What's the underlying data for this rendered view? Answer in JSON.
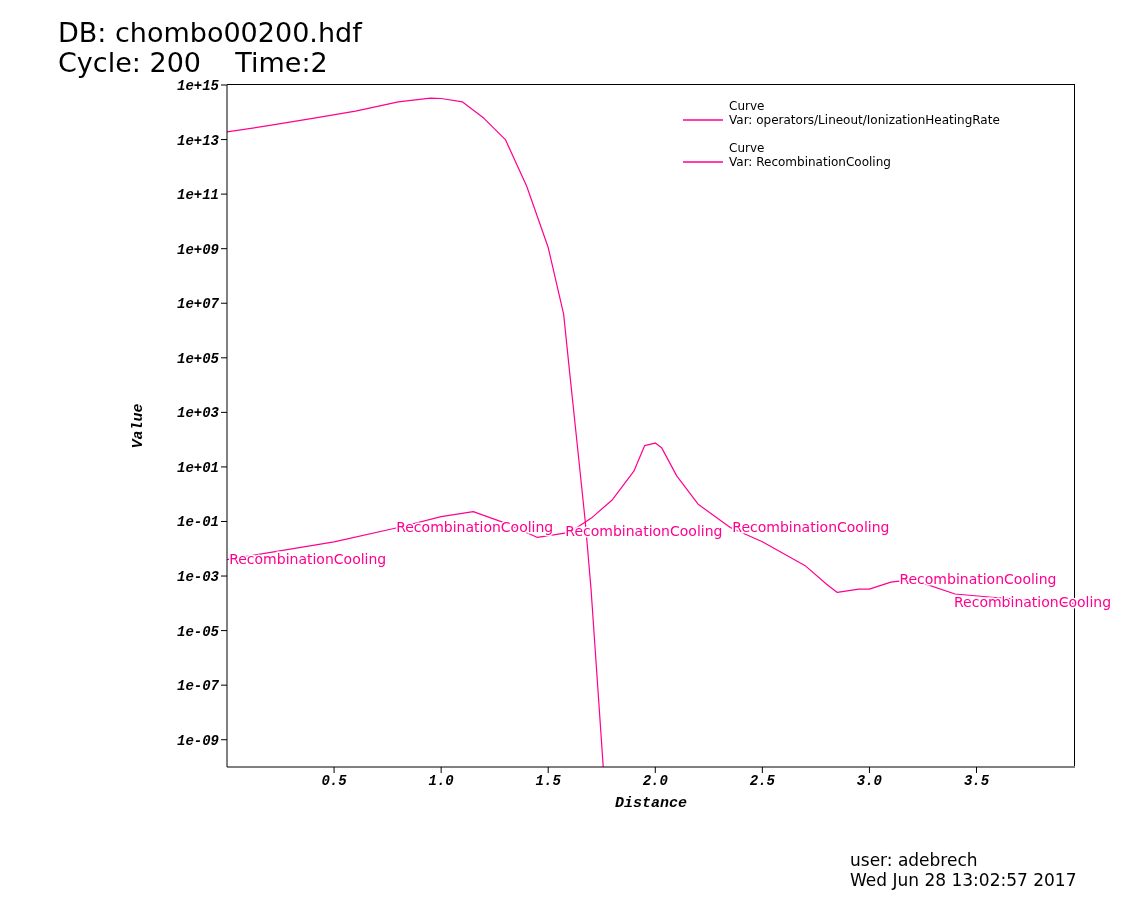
{
  "chart_data": {
    "type": "line",
    "title": "DB: chombo00200.hdf",
    "subtitle": "Cycle: 200    Time:2",
    "xlabel": "Distance",
    "ylabel": "Value",
    "legend_title": "Curve",
    "legend": "top right",
    "log": "y",
    "grid": false,
    "marker": "none",
    "line_style": "solid",
    "xlim": [
      0,
      3.96
    ],
    "xticks": [
      0.5,
      {
        "value": 1,
        "label": "1.0"
      },
      1.5,
      {
        "value": 2,
        "label": "2.0"
      },
      2.5,
      {
        "value": 3,
        "label": "3.0"
      },
      3.5
    ],
    "ylim": [
      1e-10,
      1000000000000000.0
    ],
    "yticks": [
      {
        "value": 1000000000000000.0,
        "label": "1e+15"
      },
      {
        "value": 10000000000000.0,
        "label": "1e+13"
      },
      {
        "value": 100000000000.0,
        "label": "1e+11"
      },
      {
        "value": 1000000000.0,
        "label": "1e+09"
      },
      {
        "value": 10000000.0,
        "label": "1e+07"
      },
      {
        "value": 100000.0,
        "label": "1e+05"
      },
      {
        "value": 1000.0,
        "label": "1e+03"
      },
      {
        "value": 10,
        "label": "1e+01"
      },
      {
        "value": 0.1,
        "label": "1e-01"
      },
      {
        "value": 0.001,
        "label": "1e-03"
      },
      {
        "value": 1e-05,
        "label": "1e-05"
      },
      {
        "value": 1e-07,
        "label": "1e-07"
      },
      {
        "value": 1e-09,
        "label": "1e-09"
      }
    ],
    "series": [
      {
        "name": "Var: operators/Lineout/IonizationHeatingRate",
        "color": "#ff0090",
        "x": [
          0,
          0.2,
          0.4,
          0.6,
          0.8,
          0.95,
          1.0,
          1.1,
          1.2,
          1.3,
          1.4,
          1.5,
          1.572,
          1.6,
          1.645,
          1.673,
          1.7,
          1.757
        ],
        "values": [
          19000000000000.0,
          33000000000000.0,
          60000000000000.0,
          110000000000000.0,
          240000000000000.0,
          330000000000000.0,
          320000000000000.0,
          240000000000000.0,
          60000000000000.0,
          10000000000000.0,
          190000000000.0,
          1100000000.0,
          4000000.0,
          30000.0,
          13,
          0.1,
          0.00033,
          1e-10
        ]
      },
      {
        "name": "Var: RecombinationCooling",
        "color": "#ff0090",
        "x": [
          0,
          0.5,
          0.8,
          1.0,
          1.15,
          1.3,
          1.45,
          1.6,
          1.7,
          1.8,
          1.9,
          1.95,
          2.0,
          2.03,
          2.1,
          2.2,
          2.35,
          2.5,
          2.7,
          2.8,
          2.85,
          2.95,
          3.0,
          3.1,
          3.2,
          3.4,
          3.6,
          3.96
        ],
        "values": [
          0.004,
          0.018,
          0.06,
          0.15,
          0.23,
          0.087,
          0.026,
          0.04,
          0.13,
          0.63,
          7,
          60,
          75,
          50,
          4.7,
          0.43,
          0.06,
          0.018,
          0.0024,
          0.0005,
          0.00025,
          0.00033,
          0.00033,
          0.0006,
          0.00074,
          0.00022,
          0.00016,
          0.0001
        ]
      }
    ],
    "annotations": [
      {
        "text": "RecombinationCooling",
        "x": 0.01,
        "y": 0.004
      },
      {
        "text": "RecombinationCooling",
        "x": 0.79,
        "y": 0.06
      },
      {
        "text": "RecombinationCooling",
        "x": 1.58,
        "y": 0.04
      },
      {
        "text": "RecombinationCooling",
        "x": 2.36,
        "y": 0.06
      },
      {
        "text": "RecombinationCooling",
        "x": 3.14,
        "y": 0.0007
      },
      {
        "text": "RecombinationCooling",
        "x": 3.92,
        "y": 0.0001
      },
      "user: adebrech",
      "Wed Jun 28 13:02:57 2017"
    ]
  }
}
